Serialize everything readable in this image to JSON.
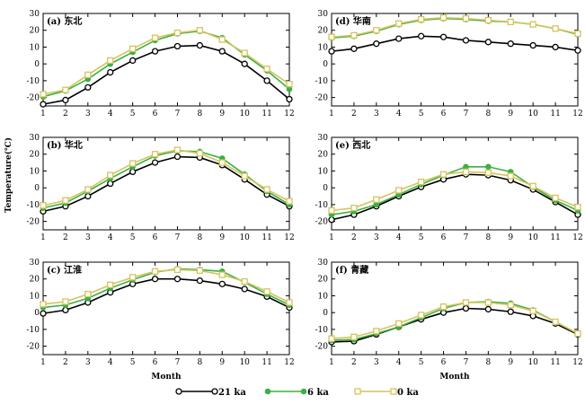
{
  "chart_data": {
    "type": "line",
    "ylabel": "Temperature(℃)",
    "xlabel": "Month",
    "x": [
      1,
      2,
      3,
      4,
      5,
      6,
      7,
      8,
      9,
      10,
      11,
      12
    ],
    "xticks": [
      "1",
      "2",
      "3",
      "4",
      "5",
      "6",
      "7",
      "8",
      "9",
      "10",
      "11",
      "12"
    ],
    "ylim": [
      -25,
      30
    ],
    "yticks": [
      -20,
      -10,
      0,
      10,
      20,
      30
    ],
    "legend": {
      "placement": "bottom-center",
      "entries": [
        {
          "name": "21 ka",
          "color": "#000000",
          "marker": "circle-open"
        },
        {
          "name": "6 ka",
          "color": "#3cb043",
          "marker": "circle-filled"
        },
        {
          "name": "0 ka",
          "color": "#d4c45c",
          "marker": "square-open"
        }
      ]
    },
    "panels": [
      {
        "label": "(a) 东北",
        "series": [
          {
            "name": "21 ka",
            "values": [
              -24,
              -21.5,
              -14,
              -5,
              2,
              7.5,
              10.5,
              11,
              7.5,
              0,
              -10,
              -21
            ]
          },
          {
            "name": "6 ka",
            "values": [
              -19.5,
              -16,
              -9,
              0,
              7,
              14,
              18,
              19.5,
              15.5,
              5.5,
              -4,
              -15
            ]
          },
          {
            "name": "0 ka",
            "values": [
              -18,
              -15.5,
              -6.5,
              2,
              9,
              15.5,
              18.5,
              20,
              14.5,
              6.5,
              -3,
              -12
            ]
          }
        ]
      },
      {
        "label": "(d) 华南",
        "series": [
          {
            "name": "21 ka",
            "values": [
              7.5,
              9,
              12,
              15,
              16.5,
              16,
              14,
              13,
              12,
              11,
              10,
              8
            ]
          },
          {
            "name": "6 ka",
            "values": [
              15.5,
              16.5,
              19.5,
              23.5,
              26,
              27,
              26.5,
              25.5,
              25,
              23.5,
              21,
              17.5
            ]
          },
          {
            "name": "0 ka",
            "values": [
              16,
              17,
              20,
              24,
              26.5,
              27.5,
              27,
              26,
              25,
              23.5,
              21,
              18
            ]
          }
        ]
      },
      {
        "label": "(b) 华北",
        "series": [
          {
            "name": "21 ka",
            "values": [
              -14,
              -11,
              -5,
              2.5,
              9.5,
              15,
              18.5,
              18,
              13.5,
              5,
              -4,
              -11
            ]
          },
          {
            "name": "6 ka",
            "values": [
              -12,
              -9,
              -2,
              5.5,
              12.5,
              19,
              22,
              21.5,
              17.5,
              8,
              -2,
              -10
            ]
          },
          {
            "name": "0 ka",
            "values": [
              -10.5,
              -7.5,
              -1,
              7.5,
              14.5,
              20,
              22.5,
              20.5,
              15,
              7,
              -1,
              -8
            ]
          }
        ]
      },
      {
        "label": "(e) 西北",
        "series": [
          {
            "name": "21 ka",
            "values": [
              -19,
              -16,
              -11,
              -5,
              0.5,
              5,
              8,
              7.5,
              4.5,
              -1,
              -8.5,
              -16
            ]
          },
          {
            "name": "6 ka",
            "values": [
              -16,
              -14,
              -10,
              -4,
              2,
              7.5,
              12.5,
              12.5,
              9.5,
              0.5,
              -7.5,
              -13.5
            ]
          },
          {
            "name": "0 ka",
            "values": [
              -13.5,
              -12,
              -7,
              -1.5,
              3.5,
              8,
              9.5,
              9,
              7,
              1,
              -6,
              -11.5
            ]
          }
        ]
      },
      {
        "label": "(c) 江淮",
        "series": [
          {
            "name": "21 ka",
            "values": [
              -0.5,
              1.5,
              6,
              12,
              17,
              20,
              20,
              19,
              17,
              14,
              9.5,
              3
            ]
          },
          {
            "name": "6 ka",
            "values": [
              3,
              4.5,
              8.5,
              14.5,
              19.5,
              24,
              26,
              25.5,
              24.5,
              18,
              11,
              4.5
            ]
          },
          {
            "name": "0 ka",
            "values": [
              5,
              6.5,
              11,
              16.5,
              21,
              24.5,
              25.5,
              25,
              22.5,
              18.5,
              12.5,
              6
            ]
          }
        ]
      },
      {
        "label": "(f) 青藏",
        "series": [
          {
            "name": "21 ka",
            "values": [
              -17.5,
              -17,
              -13,
              -8.5,
              -4,
              0,
              2.5,
              2,
              0.5,
              -2,
              -6.5,
              -13
            ]
          },
          {
            "name": "6 ka",
            "values": [
              -16.5,
              -16,
              -12.5,
              -8.5,
              -3,
              2.5,
              6,
              6.5,
              5.5,
              1.5,
              -5.5,
              -12.5
            ]
          },
          {
            "name": "0 ka",
            "values": [
              -15.5,
              -14.5,
              -11,
              -6.5,
              -1.5,
              3.5,
              6,
              6,
              4.5,
              1,
              -5.5,
              -12.5
            ]
          }
        ]
      }
    ]
  }
}
